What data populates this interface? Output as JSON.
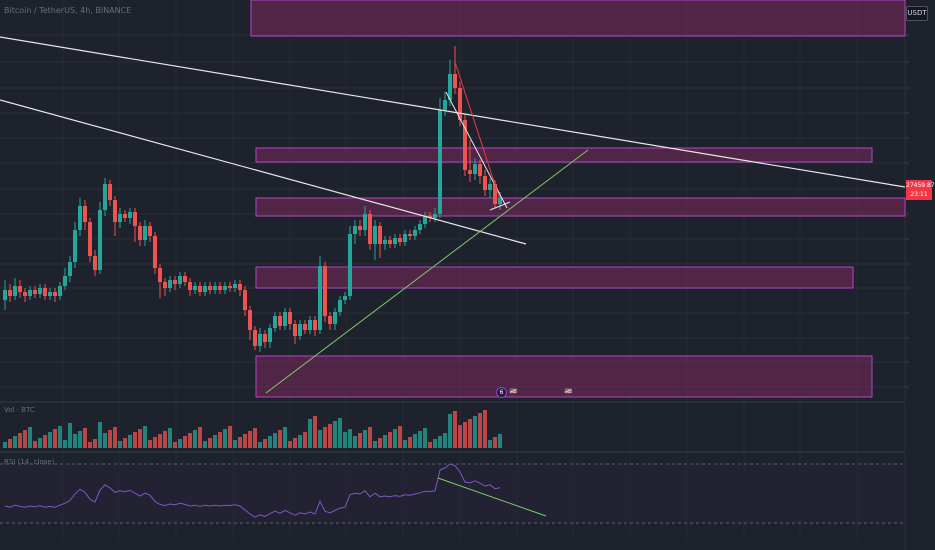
{
  "header": {
    "symbol_title": "Bitcoin / TetherUS, 4h, BINANCE",
    "currency": "USDT"
  },
  "price_tag": {
    "price": "27459.87",
    "countdown": "23:11"
  },
  "panes": {
    "volume_label": "Vol · BTC",
    "rsi_label": "RSI (14, close)"
  },
  "events": [
    {
      "name": "earnings-event",
      "glyph": "6"
    },
    {
      "name": "economic-event-us",
      "glyph": "🇺🇸"
    },
    {
      "name": "economic-event-us-2",
      "glyph": "🇺🇸"
    }
  ],
  "colors": {
    "up": "#26a69a",
    "down": "#ef5350",
    "zone_fill": "#8e2a63",
    "zone_border": "#b445c6",
    "trend_white": "#e8e8e8",
    "trend_green": "#7ec96a",
    "trend_red": "#f23645"
  }
}
